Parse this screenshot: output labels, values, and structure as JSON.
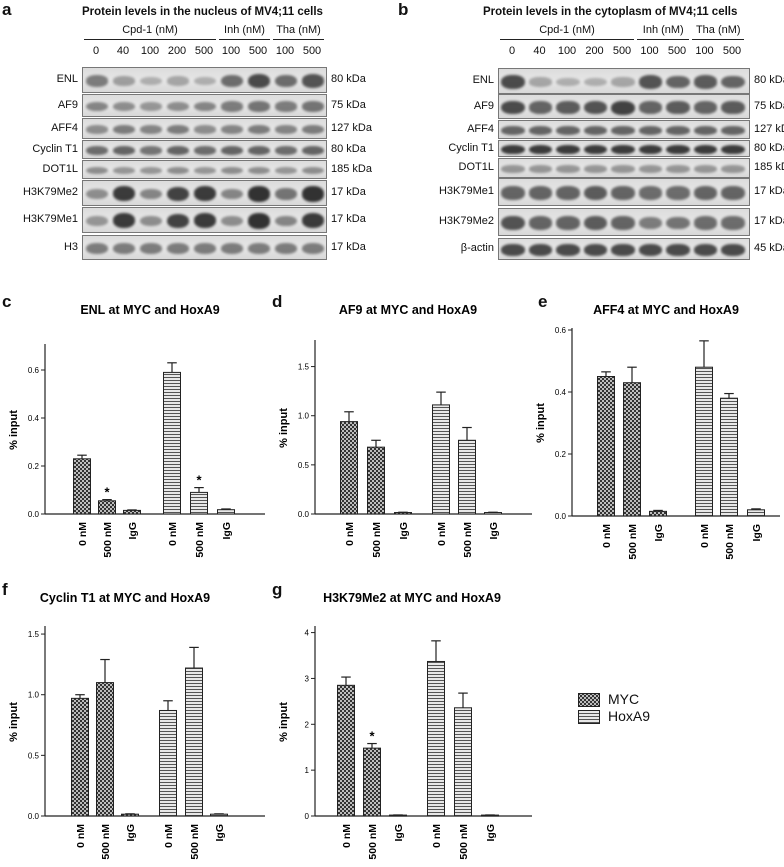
{
  "panels": {
    "a": {
      "label": "a",
      "title": "Protein levels in the nucleus of MV4;11 cells",
      "groups": [
        {
          "label": "Cpd-1 (nM)",
          "from": 0,
          "to": 4
        },
        {
          "label": "Inh (nM)",
          "from": 5,
          "to": 6
        },
        {
          "label": "Tha (nM)",
          "from": 7,
          "to": 8
        }
      ],
      "lanes": [
        "0",
        "40",
        "100",
        "200",
        "500",
        "100",
        "500",
        "100",
        "500"
      ],
      "rows": [
        {
          "name": "ENL",
          "kda": "80 kDa",
          "intensity": [
            0.45,
            0.25,
            0.15,
            0.2,
            0.15,
            0.55,
            0.75,
            0.55,
            0.7
          ]
        },
        {
          "name": "AF9",
          "kda": "75 kDa",
          "intensity": [
            0.4,
            0.35,
            0.3,
            0.35,
            0.4,
            0.45,
            0.5,
            0.45,
            0.5
          ]
        },
        {
          "name": "AFF4",
          "kda": "127 kDa",
          "intensity": [
            0.35,
            0.45,
            0.4,
            0.45,
            0.35,
            0.4,
            0.45,
            0.4,
            0.45
          ]
        },
        {
          "name": "Cyclin T1",
          "kda": "80 kDa",
          "intensity": [
            0.55,
            0.6,
            0.5,
            0.6,
            0.55,
            0.6,
            0.6,
            0.55,
            0.6
          ]
        },
        {
          "name": "DOT1L",
          "kda": "185 kDa",
          "intensity": [
            0.35,
            0.3,
            0.3,
            0.35,
            0.3,
            0.35,
            0.35,
            0.3,
            0.35
          ]
        },
        {
          "name": "H3K79Me2",
          "kda": "17 kDa",
          "intensity": [
            0.35,
            0.85,
            0.4,
            0.8,
            0.85,
            0.4,
            0.9,
            0.5,
            0.9
          ]
        },
        {
          "name": "H3K79Me1",
          "kda": "17 kDa",
          "intensity": [
            0.3,
            0.85,
            0.35,
            0.8,
            0.85,
            0.35,
            0.9,
            0.4,
            0.85
          ]
        },
        {
          "name": "H3",
          "kda": "17 kDa",
          "intensity": [
            0.45,
            0.45,
            0.45,
            0.45,
            0.45,
            0.45,
            0.45,
            0.45,
            0.45
          ]
        }
      ]
    },
    "b": {
      "label": "b",
      "title": "Protein levels in the cytoplasm of MV4;11 cells",
      "groups": [
        {
          "label": "Cpd-1 (nM)",
          "from": 0,
          "to": 4
        },
        {
          "label": "Inh (nM)",
          "from": 5,
          "to": 6
        },
        {
          "label": "Tha (nM)",
          "from": 7,
          "to": 8
        }
      ],
      "lanes": [
        "0",
        "40",
        "100",
        "200",
        "500",
        "100",
        "500",
        "100",
        "500"
      ],
      "rows": [
        {
          "name": "ENL",
          "kda": "80 kDa",
          "intensity": [
            0.75,
            0.2,
            0.15,
            0.15,
            0.2,
            0.7,
            0.6,
            0.65,
            0.6
          ]
        },
        {
          "name": "AF9",
          "kda": "75 kDa",
          "intensity": [
            0.75,
            0.6,
            0.65,
            0.7,
            0.8,
            0.6,
            0.65,
            0.6,
            0.65
          ]
        },
        {
          "name": "AFF4",
          "kda": "127 kDa",
          "intensity": [
            0.6,
            0.6,
            0.6,
            0.6,
            0.6,
            0.6,
            0.6,
            0.6,
            0.6
          ]
        },
        {
          "name": "Cyclin T1",
          "kda": "80 kDa",
          "intensity": [
            0.85,
            0.85,
            0.85,
            0.85,
            0.85,
            0.85,
            0.85,
            0.85,
            0.85
          ]
        },
        {
          "name": "DOT1L",
          "kda": "185 kDa",
          "intensity": [
            0.3,
            0.3,
            0.3,
            0.3,
            0.3,
            0.3,
            0.3,
            0.3,
            0.3
          ]
        },
        {
          "name": "H3K79Me1",
          "kda": "17 kDa",
          "intensity": [
            0.6,
            0.6,
            0.6,
            0.65,
            0.6,
            0.55,
            0.55,
            0.6,
            0.6
          ]
        },
        {
          "name": "H3K79Me2",
          "kda": "17 kDa",
          "intensity": [
            0.7,
            0.6,
            0.6,
            0.65,
            0.6,
            0.45,
            0.5,
            0.55,
            0.55
          ]
        },
        {
          "name": "β-actin",
          "kda": "45 kDa",
          "intensity": [
            0.75,
            0.75,
            0.75,
            0.75,
            0.75,
            0.75,
            0.75,
            0.75,
            0.75
          ]
        }
      ]
    }
  },
  "legend": {
    "items": [
      {
        "name": "MYC",
        "pattern": "checker"
      },
      {
        "name": "HoxA9",
        "pattern": "hstripe"
      }
    ]
  },
  "chart_data": [
    {
      "id": "c",
      "type": "bar",
      "title": "ENL at MYC and HoxA9",
      "ylabel": "% input",
      "ylim": [
        0,
        0.7
      ],
      "yticks": [
        "0.0",
        "0.2",
        "0.4",
        "0.6"
      ],
      "ytick_values": [
        0,
        0.2,
        0.4,
        0.6
      ],
      "categories": [
        "0 nM",
        "500 nM",
        "IgG",
        "0 nM",
        "500 nM",
        "IgG"
      ],
      "series_index": [
        0,
        0,
        0,
        1,
        1,
        1
      ],
      "values": [
        0.23,
        0.055,
        0.015,
        0.59,
        0.09,
        0.018
      ],
      "errors": [
        0.015,
        0.005,
        0.002,
        0.04,
        0.02,
        0.003
      ],
      "annotations": [
        "",
        "*",
        "",
        "",
        "*",
        ""
      ]
    },
    {
      "id": "d",
      "type": "bar",
      "title": "AF9 at MYC and HoxA9",
      "ylabel": "% input",
      "ylim": [
        0,
        1.75
      ],
      "yticks": [
        "0.0",
        "0.5",
        "1.0",
        "1.5"
      ],
      "ytick_values": [
        0,
        0.5,
        1.0,
        1.5
      ],
      "categories": [
        "0 nM",
        "500 nM",
        "IgG",
        "0 nM",
        "500 nM",
        "IgG"
      ],
      "series_index": [
        0,
        0,
        0,
        1,
        1,
        1
      ],
      "values": [
        0.94,
        0.68,
        0.015,
        1.11,
        0.75,
        0.015
      ],
      "errors": [
        0.1,
        0.07,
        0.003,
        0.13,
        0.13,
        0.003
      ],
      "annotations": [
        "",
        "",
        "",
        "",
        "",
        ""
      ]
    },
    {
      "id": "e",
      "type": "bar",
      "title": "AFF4 at MYC and HoxA9",
      "ylabel": "% input",
      "ylim": [
        0,
        0.6
      ],
      "yticks": [
        "0.0",
        "0.2",
        "0.4",
        "0.6"
      ],
      "ytick_values": [
        0,
        0.2,
        0.4,
        0.6
      ],
      "categories": [
        "0 nM",
        "500 nM",
        "IgG",
        "0 nM",
        "500 nM",
        "IgG"
      ],
      "series_index": [
        0,
        0,
        0,
        1,
        1,
        1
      ],
      "values": [
        0.45,
        0.43,
        0.015,
        0.48,
        0.38,
        0.02
      ],
      "errors": [
        0.015,
        0.05,
        0.003,
        0.085,
        0.015,
        0.003
      ],
      "annotations": [
        "",
        "",
        "",
        "",
        "",
        ""
      ]
    },
    {
      "id": "f",
      "type": "bar",
      "title": "Cyclin T1 at MYC and HoxA9",
      "ylabel": "% input",
      "ylim": [
        0,
        1.55
      ],
      "yticks": [
        "0.0",
        "0.5",
        "1.0",
        "1.5"
      ],
      "ytick_values": [
        0,
        0.5,
        1.0,
        1.5
      ],
      "categories": [
        "0 nM",
        "500 nM",
        "IgG",
        "0 nM",
        "500 nM",
        "IgG"
      ],
      "series_index": [
        0,
        0,
        0,
        1,
        1,
        1
      ],
      "values": [
        0.97,
        1.1,
        0.015,
        0.87,
        1.22,
        0.015
      ],
      "errors": [
        0.03,
        0.19,
        0.003,
        0.08,
        0.17,
        0.003
      ],
      "annotations": [
        "",
        "",
        "",
        "",
        "",
        ""
      ]
    },
    {
      "id": "g",
      "type": "bar",
      "title": "H3K79Me2 at MYC and HoxA9",
      "ylabel": "% input",
      "ylim": [
        0,
        4.1
      ],
      "yticks": [
        "0",
        "1",
        "2",
        "3",
        "4"
      ],
      "ytick_values": [
        0,
        1,
        2,
        3,
        4
      ],
      "categories": [
        "0 nM",
        "500 nM",
        "IgG",
        "0 nM",
        "500 nM",
        "IgG"
      ],
      "series_index": [
        0,
        0,
        0,
        1,
        1,
        1
      ],
      "values": [
        2.85,
        1.48,
        0.02,
        3.37,
        2.36,
        0.02
      ],
      "errors": [
        0.18,
        0.1,
        0.003,
        0.45,
        0.32,
        0.003
      ],
      "annotations": [
        "",
        "*",
        "",
        "",
        "",
        ""
      ]
    }
  ]
}
